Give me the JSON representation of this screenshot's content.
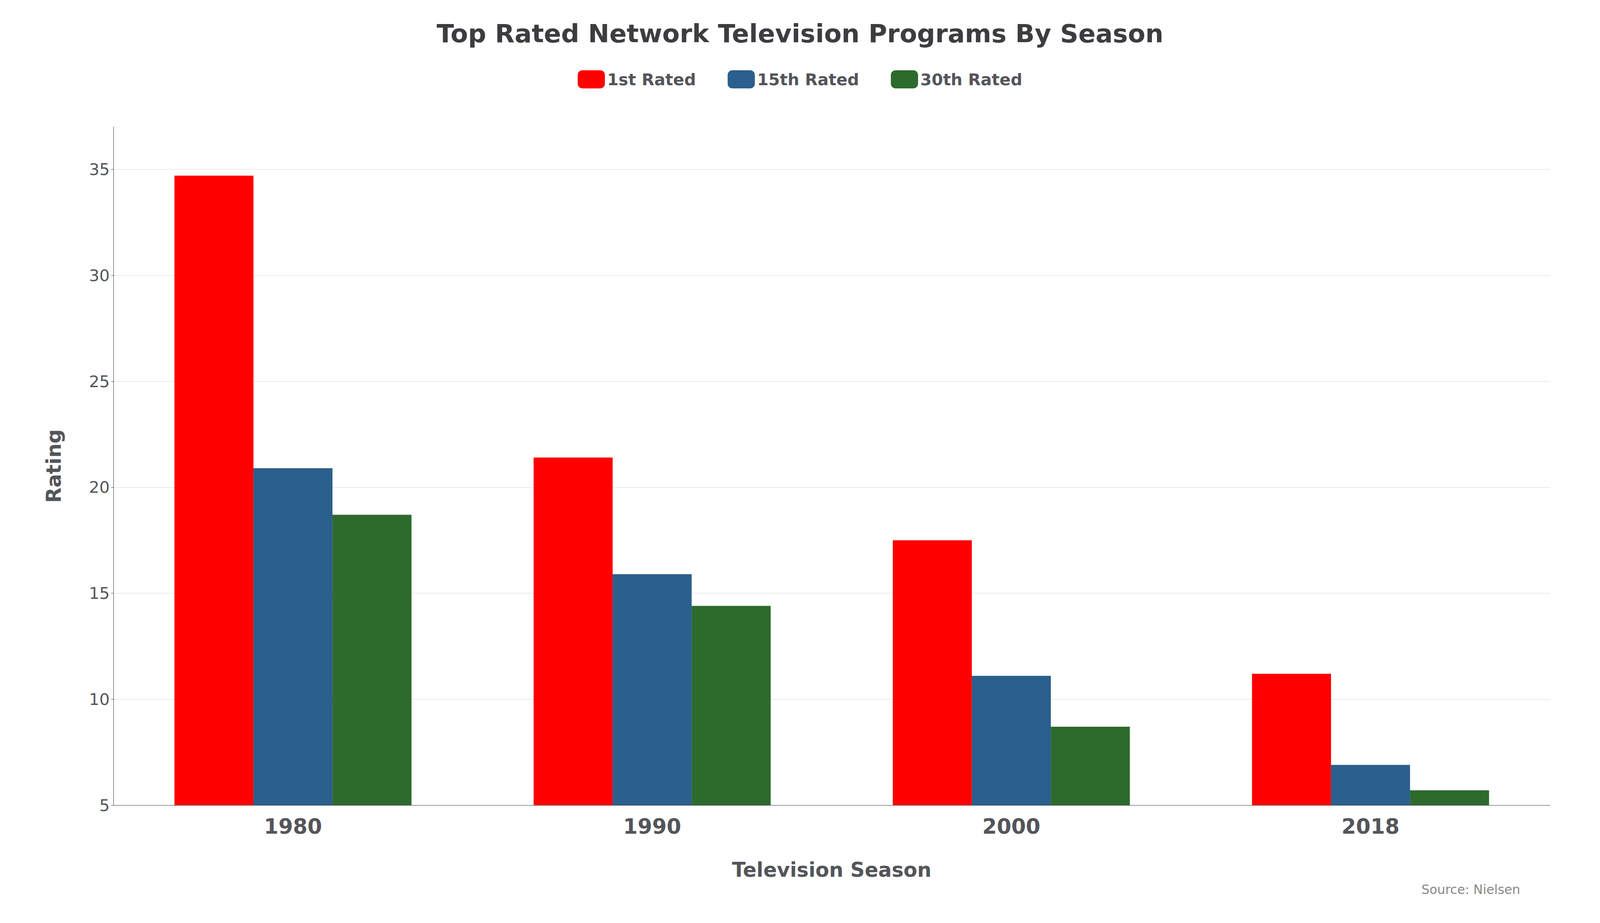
{
  "chart_data": {
    "type": "bar",
    "title": "Top Rated Network Television Programs By Season",
    "xlabel": "Television Season",
    "ylabel": "Rating",
    "annotations": [
      "Source: Nielsen"
    ],
    "categories": [
      "1980",
      "1990",
      "2000",
      "2018"
    ],
    "series": [
      {
        "name": "1st Rated",
        "color": "#FF0000",
        "values": [
          34.7,
          21.4,
          17.5,
          11.2
        ]
      },
      {
        "name": "15th Rated",
        "color": "#2B5F8C",
        "values": [
          20.9,
          15.9,
          11.1,
          6.9
        ]
      },
      {
        "name": "30th Rated",
        "color": "#2D6A2D",
        "values": [
          18.7,
          14.4,
          8.7,
          5.7
        ]
      }
    ],
    "ylim": [
      5,
      37
    ],
    "yticks": [
      5,
      10,
      15,
      20,
      25,
      30,
      35
    ],
    "grid": true,
    "legend": "top"
  }
}
